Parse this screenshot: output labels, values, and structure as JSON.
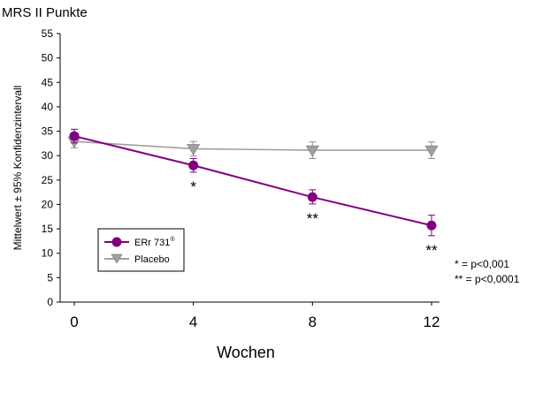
{
  "chart_data": {
    "type": "line",
    "title": "MRS II Punkte",
    "xlabel": "Wochen",
    "ylabel": "Mittelwert ± 95% Konfidenzintervall",
    "x": [
      0,
      4,
      8,
      12
    ],
    "xlim": [
      0,
      12
    ],
    "ylim": [
      0,
      55
    ],
    "yticks": [
      "0",
      "5",
      "10",
      "15",
      "20",
      "25",
      "30",
      "35",
      "40",
      "45",
      "50",
      "55"
    ],
    "xticks": [
      "0",
      "4",
      "8",
      "12"
    ],
    "grid": false,
    "legend_position": "lower-left",
    "series": [
      {
        "name": "ERr 731",
        "name_superscript": "®",
        "marker": "circle",
        "color": "#800080",
        "values": [
          34.0,
          28.0,
          21.5,
          15.7
        ],
        "err_low": [
          32.6,
          26.6,
          20.1,
          13.6
        ],
        "err_high": [
          35.4,
          29.4,
          23.0,
          17.8
        ]
      },
      {
        "name": "Placebo",
        "marker": "triangle-down",
        "color": "#a0a0a0",
        "values": [
          32.9,
          31.4,
          31.1,
          31.1
        ],
        "err_low": [
          31.6,
          29.9,
          29.4,
          29.4
        ],
        "err_high": [
          34.2,
          32.9,
          32.8,
          32.8
        ]
      }
    ],
    "significance_marks": [
      {
        "x": 4,
        "label": "*"
      },
      {
        "x": 8,
        "label": "**"
      },
      {
        "x": 12,
        "label": "**"
      }
    ],
    "footnotes": [
      "*  = p<0,001",
      "** = p<0,0001"
    ]
  }
}
